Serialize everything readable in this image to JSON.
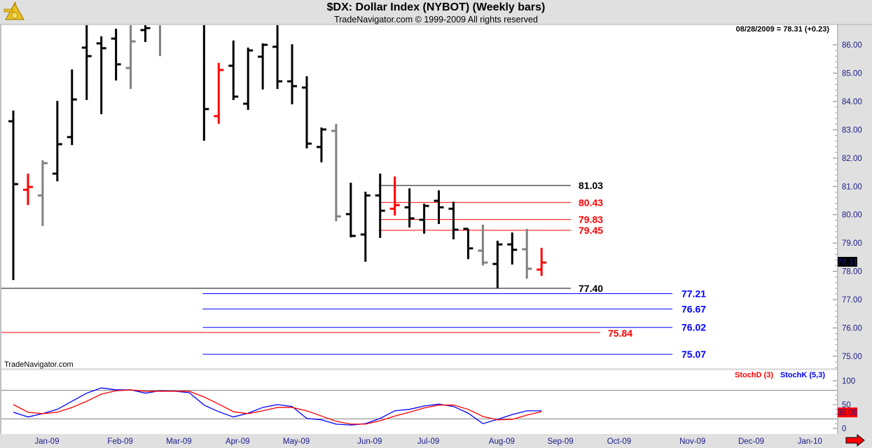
{
  "header": {
    "title": "$DX:  Dollar Index (NYBOT)  (Weekly bars)",
    "subtitle": "TradeNavigator.com © 1999-2009 All rights reserved",
    "logo": "sextant-icon"
  },
  "watermark": "TradeNavigator.com",
  "last_quote": "08/28/2009 = 78.31 (+0.23)",
  "last_price_label": "78.31",
  "colors": {
    "black": "#000000",
    "gray": "#808080",
    "red": "#ff0000",
    "green": "#00e000",
    "blue": "#0000ff",
    "stochD": "#ff0000",
    "stochK": "#0000ff"
  },
  "scroll_arrow": "right-arrow-icon",
  "chart_data": [
    {
      "type": "ohlc",
      "title": "$DX:  Dollar Index (NYBOT)  (Weekly bars)",
      "ylim": [
        74.7,
        86.72
      ],
      "yticks": [
        "86.00",
        "85.00",
        "84.00",
        "83.00",
        "82.00",
        "81.00",
        "80.00",
        "79.00",
        "78.00",
        "77.00",
        "76.00",
        "75.00"
      ],
      "ytick_values": [
        86,
        85,
        84,
        83,
        82,
        81,
        80,
        79,
        78,
        77,
        76,
        75
      ],
      "x_month_labels": [
        {
          "date": "2009-01-02",
          "label": "Jan-09"
        },
        {
          "date": "2009-02-06",
          "label": "Feb-09"
        },
        {
          "date": "2009-03-06",
          "label": "Mar-09"
        },
        {
          "date": "2009-04-03",
          "label": "Apr-09"
        },
        {
          "date": "2009-05-01",
          "label": "May-09"
        },
        {
          "date": "2009-06-05",
          "label": "Jun-09"
        },
        {
          "date": "2009-07-03",
          "label": "Jul-09"
        },
        {
          "date": "2009-08-07",
          "label": "Aug-09"
        },
        {
          "date": "2009-09-04",
          "label": "Sep-09"
        },
        {
          "date": "2009-10-02",
          "label": "Oct-09"
        },
        {
          "date": "2009-11-06",
          "label": "Nov-09"
        },
        {
          "date": "2009-12-04",
          "label": "Dec-09"
        },
        {
          "date": "2010-01-01",
          "label": "Jan-10"
        }
      ],
      "bars": [
        {
          "date": "2008-12-19",
          "o": 83.3,
          "h": 83.68,
          "l": 77.69,
          "c": 81.08,
          "color": "black"
        },
        {
          "date": "2008-12-26",
          "o": 80.88,
          "h": 81.45,
          "l": 80.34,
          "c": 80.98,
          "color": "red"
        },
        {
          "date": "2009-01-02",
          "o": 80.68,
          "h": 81.92,
          "l": 79.6,
          "c": 81.82,
          "color": "gray"
        },
        {
          "date": "2009-01-09",
          "o": 81.45,
          "h": 84.02,
          "l": 81.18,
          "c": 82.49,
          "color": "black"
        },
        {
          "date": "2009-01-16",
          "o": 82.74,
          "h": 85.13,
          "l": 82.46,
          "c": 84.07,
          "color": "black"
        },
        {
          "date": "2009-01-23",
          "o": 85.9,
          "h": 86.8,
          "l": 84.05,
          "c": 85.6,
          "color": "black"
        },
        {
          "date": "2009-01-30",
          "o": 86.05,
          "h": 86.3,
          "l": 83.55,
          "c": 85.88,
          "color": "black"
        },
        {
          "date": "2009-02-06",
          "o": 86.22,
          "h": 86.57,
          "l": 84.74,
          "c": 85.31,
          "color": "black"
        },
        {
          "date": "2009-02-13",
          "o": 85.18,
          "h": 86.9,
          "l": 84.44,
          "c": 86.12,
          "color": "gray"
        },
        {
          "date": "2009-02-20",
          "o": 86.52,
          "h": 86.9,
          "l": 86.1,
          "c": 86.59,
          "color": "black"
        },
        {
          "date": "2009-02-27",
          "o": 86.9,
          "h": 87.2,
          "l": 85.6,
          "c": 86.85,
          "color": "gray"
        },
        {
          "date": "2009-03-06",
          "o": 87.3,
          "h": 88.2,
          "l": 86.75,
          "c": 87.6,
          "color": "black"
        },
        {
          "date": "2009-03-13",
          "o": 87.5,
          "h": 88.3,
          "l": 86.75,
          "c": 87.0,
          "color": "black"
        },
        {
          "date": "2009-03-20",
          "o": 87.0,
          "h": 88.0,
          "l": 82.61,
          "c": 83.73,
          "color": "black"
        },
        {
          "date": "2009-03-27",
          "o": 83.48,
          "h": 85.36,
          "l": 83.21,
          "c": 85.11,
          "color": "red"
        },
        {
          "date": "2009-04-03",
          "o": 85.26,
          "h": 86.15,
          "l": 84.05,
          "c": 84.17,
          "color": "black"
        },
        {
          "date": "2009-04-10",
          "o": 83.92,
          "h": 85.9,
          "l": 83.7,
          "c": 85.8,
          "color": "black"
        },
        {
          "date": "2009-04-17",
          "o": 85.58,
          "h": 86.05,
          "l": 84.42,
          "c": 86.0,
          "color": "black"
        },
        {
          "date": "2009-04-24",
          "o": 85.93,
          "h": 86.9,
          "l": 84.44,
          "c": 84.71,
          "color": "black"
        },
        {
          "date": "2009-05-01",
          "o": 84.71,
          "h": 86.02,
          "l": 83.9,
          "c": 84.54,
          "color": "black"
        },
        {
          "date": "2009-05-08",
          "o": 84.49,
          "h": 84.89,
          "l": 82.34,
          "c": 82.51,
          "color": "black"
        },
        {
          "date": "2009-05-15",
          "o": 82.39,
          "h": 83.08,
          "l": 81.85,
          "c": 83.01,
          "color": "black"
        },
        {
          "date": "2009-05-22",
          "o": 82.96,
          "h": 83.21,
          "l": 79.77,
          "c": 79.94,
          "color": "gray"
        },
        {
          "date": "2009-05-29",
          "o": 80.02,
          "h": 81.13,
          "l": 79.2,
          "c": 79.25,
          "color": "black"
        },
        {
          "date": "2009-06-05",
          "o": 79.3,
          "h": 80.81,
          "l": 78.34,
          "c": 80.68,
          "color": "black"
        },
        {
          "date": "2009-06-12",
          "o": 80.68,
          "h": 81.45,
          "l": 79.18,
          "c": 80.14,
          "color": "black"
        },
        {
          "date": "2009-06-19",
          "o": 80.21,
          "h": 81.35,
          "l": 79.97,
          "c": 80.34,
          "color": "red"
        },
        {
          "date": "2009-06-26",
          "o": 80.26,
          "h": 80.93,
          "l": 79.55,
          "c": 79.87,
          "color": "black"
        },
        {
          "date": "2009-07-03",
          "o": 79.82,
          "h": 80.39,
          "l": 79.33,
          "c": 80.31,
          "color": "black"
        },
        {
          "date": "2009-07-10",
          "o": 80.49,
          "h": 80.86,
          "l": 79.67,
          "c": 80.26,
          "color": "black"
        },
        {
          "date": "2009-07-17",
          "o": 80.21,
          "h": 80.46,
          "l": 79.13,
          "c": 79.47,
          "color": "black"
        },
        {
          "date": "2009-07-24",
          "o": 79.5,
          "h": 79.5,
          "l": 78.43,
          "c": 78.81,
          "color": "black"
        },
        {
          "date": "2009-07-31",
          "o": 78.73,
          "h": 79.65,
          "l": 78.21,
          "c": 78.31,
          "color": "gray"
        },
        {
          "date": "2009-08-07",
          "o": 78.26,
          "h": 79.08,
          "l": 77.4,
          "c": 78.95,
          "color": "black"
        },
        {
          "date": "2009-08-14",
          "o": 78.95,
          "h": 79.37,
          "l": 78.24,
          "c": 78.76,
          "color": "black"
        },
        {
          "date": "2009-08-21",
          "o": 78.78,
          "h": 79.5,
          "l": 77.74,
          "c": 78.09,
          "color": "gray"
        },
        {
          "date": "2009-08-28",
          "o": 78.06,
          "h": 78.83,
          "l": 77.84,
          "c": 78.31,
          "color": "red"
        }
      ],
      "levels": [
        {
          "value": 81.03,
          "label": "81.03",
          "color": "black",
          "label_color": "black",
          "from": "2009-06-12",
          "to": "2009-10-02",
          "label_pos": "short"
        },
        {
          "value": 80.43,
          "label": "80.43",
          "color": "red",
          "label_color": "red",
          "from": "2009-06-12",
          "to": "2009-10-02",
          "label_pos": "short"
        },
        {
          "value": 79.83,
          "label": "79.83",
          "color": "red",
          "label_color": "red",
          "from": "2009-06-12",
          "to": "2009-10-02",
          "label_pos": "short"
        },
        {
          "value": 79.45,
          "label": "79.45",
          "color": "red",
          "label_color": "red",
          "from": "2009-06-12",
          "to": "2009-10-02",
          "label_pos": "short"
        },
        {
          "value": 77.4,
          "label": "77.40",
          "color": "black",
          "label_color": "black",
          "from": "start",
          "to": "2009-10-02",
          "label_pos": "short"
        },
        {
          "value": 77.21,
          "label": "77.21",
          "color": "blue",
          "label_color": "blue",
          "from": "2009-03-20",
          "to": "2009-11-06",
          "label_pos": "long"
        },
        {
          "value": 76.67,
          "label": "76.67",
          "color": "blue",
          "label_color": "blue",
          "from": "2009-03-20",
          "to": "2009-11-06",
          "label_pos": "long"
        },
        {
          "value": 76.02,
          "label": "76.02",
          "color": "blue",
          "label_color": "blue",
          "from": "2009-03-20",
          "to": "2009-11-06",
          "label_pos": "long"
        },
        {
          "value": 75.84,
          "label": "75.84",
          "color": "red",
          "label_color": "red",
          "from": "start",
          "to": "2009-10-16",
          "label_pos": "mid"
        },
        {
          "value": 75.07,
          "label": "75.07",
          "color": "blue",
          "label_color": "blue",
          "from": "2009-03-20",
          "to": "2009-11-06",
          "label_pos": "long"
        }
      ]
    },
    {
      "type": "line",
      "ylim": [
        0,
        100
      ],
      "yticks": [
        "100",
        "50",
        "0"
      ],
      "ytick_values": [
        100,
        50,
        0
      ],
      "reference_lines": [
        80,
        20
      ],
      "last_value_label": "35.05",
      "series": [
        {
          "name": "StochD (3)",
          "color": "red",
          "values": [
            50,
            34,
            31,
            34,
            44,
            57,
            72,
            79,
            81,
            78,
            78,
            78,
            78,
            66,
            51,
            35,
            31,
            37,
            44,
            44,
            37,
            26,
            15,
            9,
            9,
            16,
            26,
            34,
            43,
            49,
            49,
            40,
            25,
            18,
            19,
            28,
            35.05
          ]
        },
        {
          "name": "StochK (5,3)",
          "color": "blue",
          "values": [
            34,
            24,
            31,
            40,
            57,
            74,
            85,
            81,
            81,
            74,
            79,
            78,
            75,
            49,
            35,
            24,
            32,
            44,
            50,
            46,
            21,
            18,
            9,
            7,
            10,
            21,
            37,
            40,
            47,
            51,
            46,
            32,
            10,
            19,
            29,
            37,
            37
          ]
        }
      ]
    }
  ]
}
